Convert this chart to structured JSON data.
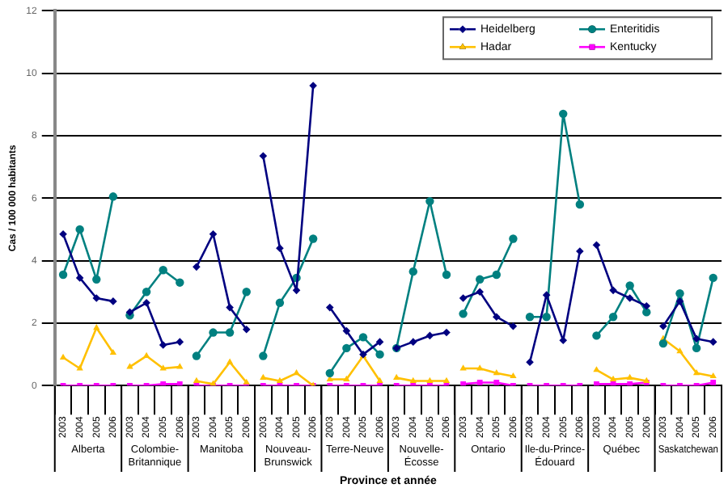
{
  "chart_data": {
    "type": "line",
    "ylabel": "Cas / 100 000 habitants",
    "xlabel": "Province et année",
    "categories": [
      "2003",
      "2004",
      "2005",
      "2006",
      "2003",
      "2004",
      "2005",
      "2006",
      "2003",
      "2004",
      "2005",
      "2006",
      "2003",
      "2004",
      "2005",
      "2006",
      "2003",
      "2004",
      "2005",
      "2006",
      "2003",
      "2004",
      "2005",
      "2006",
      "2003",
      "2004",
      "2005",
      "2006",
      "2003",
      "2004",
      "2005",
      "2006",
      "2003",
      "2004",
      "2005",
      "2006",
      "2003",
      "2004",
      "2005",
      "2006"
    ],
    "annotations": [
      "Alberta",
      "Colombie-Britannique",
      "Manitoba",
      "Nouveau-Brunswick",
      "Terre-Neuve",
      "Nouvelle-Écosse",
      "Ontario",
      "Ile-du-Prince-Édouard",
      "Québec",
      "Saskatchewan"
    ],
    "series": [
      {
        "name": "Heidelberg",
        "color": "#000080",
        "marker": "diamond",
        "values": [
          4.85,
          3.45,
          2.8,
          2.7,
          2.35,
          2.65,
          1.3,
          1.4,
          3.8,
          4.85,
          2.5,
          1.8,
          7.35,
          4.4,
          3.05,
          9.6,
          2.5,
          1.75,
          1.0,
          1.4,
          1.2,
          1.4,
          1.6,
          1.7,
          2.8,
          3.0,
          2.2,
          1.9,
          0.75,
          2.9,
          1.45,
          4.3,
          4.5,
          3.05,
          2.8,
          2.55,
          1.9,
          2.7,
          1.5,
          1.4
        ]
      },
      {
        "name": "Enteritidis",
        "color": "#008080",
        "marker": "circle",
        "values": [
          3.55,
          5.0,
          3.4,
          6.05,
          2.25,
          3.0,
          3.7,
          3.3,
          0.95,
          1.7,
          1.7,
          3.0,
          0.95,
          2.65,
          3.45,
          4.7,
          0.4,
          1.2,
          1.55,
          1.0,
          1.2,
          3.65,
          5.9,
          3.55,
          2.3,
          3.4,
          3.55,
          4.7,
          2.2,
          2.2,
          8.7,
          5.8,
          1.6,
          2.2,
          3.2,
          2.35,
          1.35,
          2.95,
          1.2,
          3.45
        ]
      },
      {
        "name": "Hadar",
        "color": "#ffc000",
        "marker": "triangle",
        "values": [
          0.9,
          0.55,
          1.85,
          1.05,
          0.6,
          0.95,
          0.55,
          0.6,
          0.15,
          0.05,
          0.75,
          0.1,
          0.25,
          0.15,
          0.4,
          0.0,
          0.2,
          0.2,
          0.95,
          0.15,
          0.25,
          0.15,
          0.15,
          0.15,
          0.55,
          0.55,
          0.4,
          0.3,
          null,
          null,
          null,
          null,
          0.5,
          0.2,
          0.25,
          0.15,
          1.5,
          1.1,
          0.4,
          0.3
        ]
      },
      {
        "name": "Kentucky",
        "color": "#ff00ff",
        "marker": "square",
        "values": [
          0,
          0,
          0,
          0,
          0,
          0,
          0.05,
          0.05,
          0,
          0,
          0,
          0,
          0,
          0,
          0,
          0,
          0,
          0,
          0,
          0,
          0,
          0,
          0,
          0,
          0.05,
          0.1,
          0.1,
          0,
          0,
          0,
          0,
          0,
          0.05,
          0.05,
          0.05,
          0.1,
          0,
          0,
          0,
          0.1
        ]
      }
    ],
    "ylim": [
      0,
      12
    ],
    "yticks": [
      0,
      2,
      4,
      6,
      8,
      10,
      12
    ],
    "grid": "y",
    "legend": "top right",
    "line_style": "solid"
  }
}
